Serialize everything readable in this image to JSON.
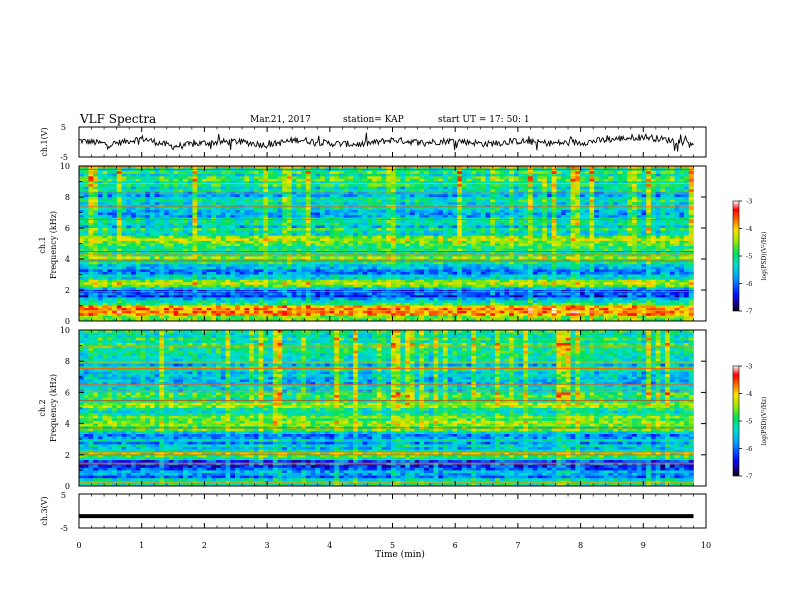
{
  "header": {
    "title": "VLF Spectra",
    "date": "Mar.21, 2017",
    "station": "station= KAP",
    "start_time": "start  UT =  17: 50: 1"
  },
  "chart_data": [
    {
      "type": "line",
      "panel": "ch1-waveform",
      "ylabel": "ch.1(V)",
      "yticks": [
        "5",
        "-5"
      ],
      "ylim": [
        -5,
        5
      ],
      "x": [
        0,
        0.5,
        1,
        1.5,
        2,
        2.5,
        3,
        3.5,
        4,
        4.5,
        5,
        5.5,
        6,
        6.5,
        7,
        7.5,
        8,
        8.5,
        9,
        9.5,
        9.8
      ],
      "values": [
        0.5,
        -0.8,
        1.2,
        -1.5,
        -0.3,
        0.2,
        -1.0,
        0.8,
        -0.5,
        -0.8,
        0.7,
        -0.2,
        0.5,
        -0.7,
        0.3,
        -0.4,
        -0.2,
        0.9,
        1.8,
        0.4,
        -0.3
      ]
    },
    {
      "type": "heatmap",
      "panel": "ch1-spectrogram",
      "ylabel": "ch.1\nFrequency (kHz)",
      "yticks": [
        "0",
        "2",
        "4",
        "6",
        "8",
        "10"
      ],
      "ylim": [
        0,
        10
      ],
      "xlim": [
        0,
        9.8
      ],
      "colorbar": {
        "label": "log(PSD)(V²/Hz)",
        "ticks": [
          "-3",
          "-4",
          "-5",
          "-6",
          "-7"
        ],
        "range": [
          -7,
          -3
        ]
      },
      "freq_khz": [
        0,
        0.4,
        0.8,
        1.2,
        1.6,
        2.0,
        2.4,
        2.8,
        3.2,
        3.6,
        4.0,
        4.4,
        4.8,
        5.2,
        5.6,
        6.0,
        7.0,
        8.0,
        9.0,
        10.0
      ],
      "mean_log_psd": [
        -4.5,
        -4.2,
        -3.5,
        -5.0,
        -6.3,
        -5.9,
        -4.2,
        -5.3,
        -6.0,
        -5.2,
        -4.7,
        -5.0,
        -5.2,
        -4.6,
        -5.2,
        -5.3,
        -5.5,
        -5.4,
        -5.1,
        -4.9
      ]
    },
    {
      "type": "heatmap",
      "panel": "ch2-spectrogram",
      "ylabel": "ch.2\nFrequency (kHz)",
      "yticks": [
        "0",
        "2",
        "4",
        "6",
        "8",
        "10"
      ],
      "ylim": [
        0,
        10
      ],
      "xlim": [
        0,
        9.8
      ],
      "colorbar": {
        "label": "log(PSD)(V²/Hz)",
        "ticks": [
          "-3",
          "-4",
          "-5",
          "-6",
          "-7"
        ],
        "range": [
          -7,
          -3
        ]
      },
      "freq_khz": [
        0,
        0.4,
        0.8,
        1.2,
        1.6,
        2.0,
        2.4,
        2.8,
        3.2,
        3.6,
        4.0,
        4.4,
        4.8,
        5.2,
        5.6,
        6.0,
        7.0,
        8.0,
        9.0,
        10.0
      ],
      "mean_log_psd": [
        -5.0,
        -5.6,
        -5.8,
        -6.2,
        -6.0,
        -4.3,
        -5.9,
        -5.5,
        -5.8,
        -4.6,
        -4.5,
        -4.8,
        -5.0,
        -4.7,
        -5.1,
        -5.2,
        -5.4,
        -5.3,
        -5.1,
        -4.9
      ]
    },
    {
      "type": "line",
      "panel": "ch3-waveform",
      "ylabel": "ch.3(V)",
      "yticks": [
        "5",
        "-5"
      ],
      "ylim": [
        -5,
        5
      ],
      "x": [
        0,
        9.8
      ],
      "values": [
        -1.5,
        -1.5
      ]
    }
  ],
  "xaxis": {
    "label": "Time  (min)",
    "ticks": [
      "0",
      "1",
      "2",
      "3",
      "4",
      "5",
      "6",
      "7",
      "8",
      "9",
      "10"
    ],
    "range": [
      0,
      10
    ]
  }
}
